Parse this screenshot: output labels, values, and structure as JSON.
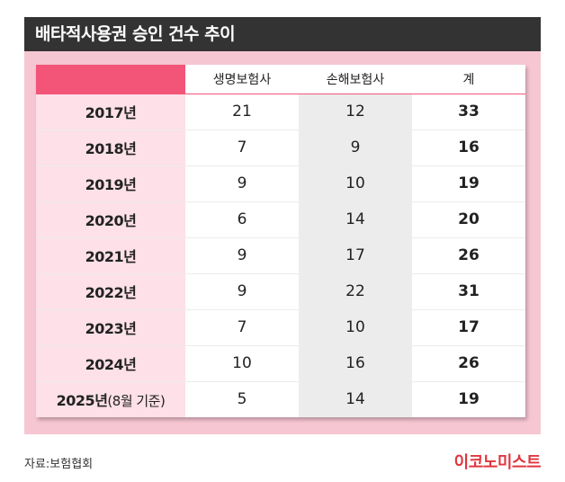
{
  "title": "배타적사용권 승인 건수 추이",
  "chart_data": {
    "type": "table",
    "columns": [
      "",
      "생명보험사",
      "손해보험사",
      "계"
    ],
    "rows": [
      {
        "year": "2017년",
        "note": "",
        "life": 21,
        "nonlife": 12,
        "total": 33
      },
      {
        "year": "2018년",
        "note": "",
        "life": 7,
        "nonlife": 9,
        "total": 16
      },
      {
        "year": "2019년",
        "note": "",
        "life": 9,
        "nonlife": 10,
        "total": 19
      },
      {
        "year": "2020년",
        "note": "",
        "life": 6,
        "nonlife": 14,
        "total": 20
      },
      {
        "year": "2021년",
        "note": "",
        "life": 9,
        "nonlife": 17,
        "total": 26
      },
      {
        "year": "2022년",
        "note": "",
        "life": 9,
        "nonlife": 22,
        "total": 31
      },
      {
        "year": "2023년",
        "note": "",
        "life": 7,
        "nonlife": 10,
        "total": 17
      },
      {
        "year": "2024년",
        "note": "",
        "life": 10,
        "nonlife": 16,
        "total": 26
      },
      {
        "year": "2025년",
        "note": "(8월 기준)",
        "life": 5,
        "nonlife": 14,
        "total": 19
      }
    ]
  },
  "source": "자료:보험협회",
  "brand": "이코노미스트",
  "colors": {
    "accent": "#f25577",
    "panel": "#f7c6d3",
    "title_bg": "#333333",
    "brand": "#e0363f"
  }
}
